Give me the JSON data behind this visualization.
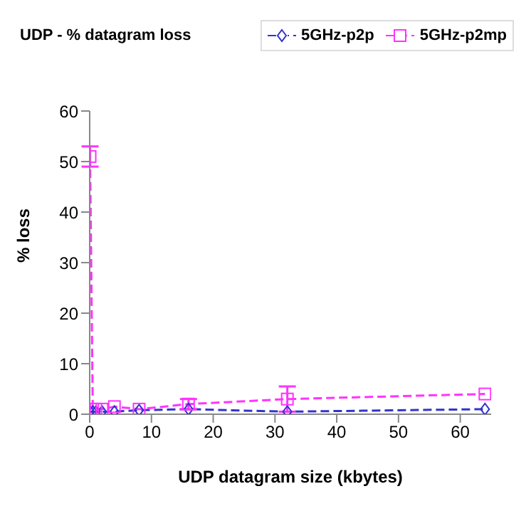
{
  "chart_data": {
    "type": "line",
    "title": "UDP - % datagram loss",
    "xlabel": "UDP datagram size (kbytes)",
    "ylabel": "% loss",
    "x": [
      0.0625,
      0.5,
      1,
      2,
      4,
      8,
      16,
      32,
      64
    ],
    "xlim": [
      0,
      65
    ],
    "xticks": [
      0,
      10,
      20,
      30,
      40,
      50,
      60
    ],
    "ylim": [
      0,
      60
    ],
    "yticks": [
      0,
      10,
      20,
      30,
      40,
      50,
      60
    ],
    "legend": "top right",
    "line_style": "dashed",
    "grid": false,
    "series": [
      {
        "name": "5GHz-p2p",
        "color": "#3333cc",
        "marker": "diamond",
        "values": [
          0.5,
          0.5,
          0.5,
          0.5,
          0.5,
          0.8,
          1,
          0.5,
          1
        ]
      },
      {
        "name": "5GHz-p2mp",
        "color": "#ff33ff",
        "marker": "square",
        "values": [
          51,
          1,
          1,
          1,
          1.5,
          1,
          2,
          3,
          4
        ],
        "errors": [
          2,
          null,
          null,
          null,
          null,
          null,
          1,
          2.5,
          null
        ]
      }
    ]
  }
}
